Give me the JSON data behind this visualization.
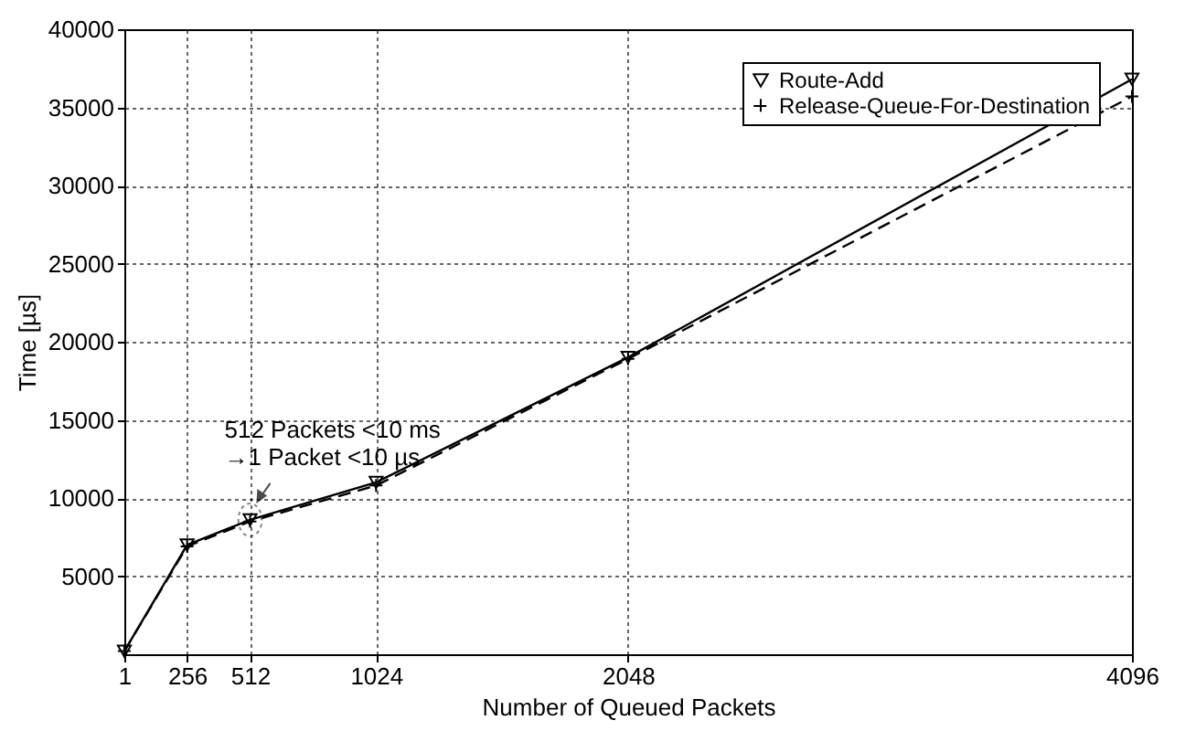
{
  "chart_data": {
    "type": "line",
    "xlabel": "Number of Queued Packets",
    "ylabel": "Time [µs]",
    "x": [
      1,
      256,
      512,
      1024,
      2048,
      4096
    ],
    "series": [
      {
        "name": "Route-Add",
        "color": "#000000",
        "marker": "triangle",
        "line_style": "solid",
        "values": [
          200,
          7000,
          8600,
          11000,
          19000,
          36800
        ]
      },
      {
        "name": "Release-Queue-For-Destination",
        "color": "#000000",
        "marker": "cross",
        "line_style": "dashed",
        "values": [
          200,
          6900,
          8500,
          10800,
          18900,
          35700
        ]
      }
    ],
    "xlim": [
      1,
      4096
    ],
    "xticks": [
      1,
      256,
      512,
      1024,
      2048,
      4096
    ],
    "ylim": [
      0,
      40000
    ],
    "yticks": [
      5000,
      10000,
      15000,
      20000,
      25000,
      30000,
      35000,
      40000
    ],
    "grid": true,
    "legend": "top right",
    "annotations": [
      {
        "text": "512 Packets <10 ms\n→1 Packet <10 µs",
        "x": 512,
        "y": 8600
      }
    ]
  }
}
